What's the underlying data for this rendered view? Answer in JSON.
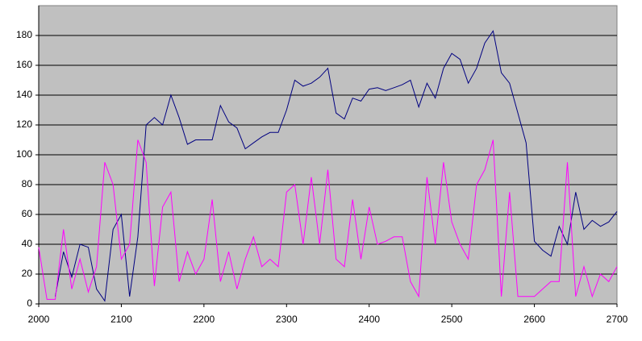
{
  "chart_data": {
    "type": "line",
    "x": [
      2000,
      2010,
      2020,
      2030,
      2040,
      2050,
      2060,
      2070,
      2080,
      2090,
      2100,
      2110,
      2120,
      2130,
      2140,
      2150,
      2160,
      2170,
      2180,
      2190,
      2200,
      2210,
      2220,
      2230,
      2240,
      2250,
      2260,
      2270,
      2280,
      2290,
      2300,
      2310,
      2320,
      2330,
      2340,
      2350,
      2360,
      2370,
      2380,
      2390,
      2400,
      2410,
      2420,
      2430,
      2440,
      2450,
      2460,
      2470,
      2480,
      2490,
      2500,
      2510,
      2520,
      2530,
      2540,
      2550,
      2560,
      2570,
      2580,
      2590,
      2600,
      2610,
      2620,
      2630,
      2640,
      2650,
      2660,
      2670,
      2680,
      2690,
      2700
    ],
    "series": [
      {
        "color": "#000080",
        "values": [
          null,
          null,
          5,
          35,
          18,
          40,
          38,
          10,
          2,
          50,
          60,
          5,
          45,
          120,
          125,
          120,
          140,
          125,
          107,
          110,
          110,
          110,
          133,
          122,
          118,
          104,
          108,
          112,
          115,
          115,
          130,
          150,
          146,
          148,
          152,
          158,
          128,
          124,
          138,
          136,
          144,
          145,
          143,
          145,
          147,
          150,
          132,
          148,
          138,
          158,
          168,
          164,
          148,
          158,
          175,
          183,
          155,
          148,
          128,
          108,
          42,
          36,
          32,
          52,
          40,
          75,
          50,
          56,
          52,
          55,
          62
        ]
      },
      {
        "color": "#ff00ff",
        "values": [
          38,
          3,
          3,
          50,
          10,
          30,
          8,
          25,
          95,
          80,
          30,
          40,
          110,
          95,
          12,
          65,
          75,
          15,
          35,
          20,
          30,
          70,
          15,
          35,
          10,
          30,
          45,
          25,
          30,
          25,
          75,
          80,
          40,
          85,
          40,
          90,
          30,
          25,
          70,
          30,
          65,
          40,
          42,
          45,
          45,
          15,
          5,
          85,
          40,
          95,
          55,
          40,
          30,
          80,
          90,
          110,
          5,
          75,
          5,
          5,
          5,
          10,
          15,
          15,
          95,
          5,
          25,
          5,
          20,
          15,
          25
        ]
      }
    ],
    "xlim": [
      2000,
      2700
    ],
    "xticks": [
      2000,
      2100,
      2200,
      2300,
      2400,
      2500,
      2600,
      2700
    ],
    "ylim": [
      0,
      200
    ],
    "yticks": [
      0,
      20,
      40,
      60,
      80,
      100,
      120,
      140,
      160,
      180
    ],
    "grid": true,
    "background": "#c0c0c0"
  }
}
